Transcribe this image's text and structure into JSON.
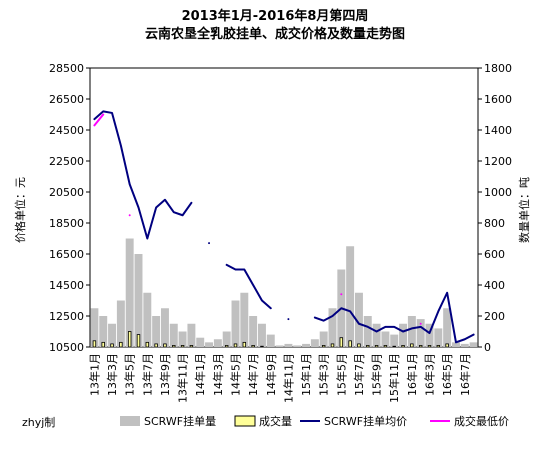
{
  "chart_data": {
    "type": "combo",
    "title": "2013年1月-2016年8月第四周",
    "subtitle": "云南农垦全乳胶挂单、成交价格及数量走势图",
    "y_label": "价格单位：元",
    "y2_label": "数量单位：吨",
    "note": "zhyj制",
    "categories": [
      "13年1月",
      null,
      "13年3月",
      null,
      "13年5月",
      null,
      "13年7月",
      null,
      "13年9月",
      null,
      "13年11月",
      null,
      "14年1月",
      null,
      "14年3月",
      null,
      "14年5月",
      null,
      "14年7月",
      null,
      "14年9月",
      null,
      "14年11月",
      null,
      "15年1月",
      null,
      "15年3月",
      null,
      "15年5月",
      null,
      "15年7月",
      null,
      "15年9月",
      null,
      "15年11月",
      null,
      "16年1月",
      null,
      "16年3月",
      null,
      "16年5月",
      null,
      "16年7月",
      null
    ],
    "ylim": [
      10500,
      28500
    ],
    "yticks": [
      10500,
      12500,
      14500,
      16500,
      18500,
      20500,
      22500,
      24500,
      26500,
      28500
    ],
    "y2lim": [
      0,
      1800
    ],
    "y2ticks": [
      0,
      200,
      400,
      600,
      800,
      1000,
      1200,
      1400,
      1600,
      1800
    ],
    "series": [
      {
        "name": "SCRWF挂单量",
        "kind": "bar",
        "axis": "y2",
        "color": "#c0c0c0",
        "values": [
          250,
          200,
          150,
          300,
          700,
          600,
          350,
          200,
          250,
          150,
          100,
          150,
          60,
          30,
          50,
          100,
          300,
          350,
          200,
          150,
          80,
          10,
          20,
          10,
          20,
          50,
          100,
          250,
          500,
          650,
          350,
          200,
          150,
          100,
          80,
          150,
          200,
          180,
          150,
          120,
          250,
          30,
          20,
          30
        ]
      },
      {
        "name": "成交量",
        "kind": "bar",
        "axis": "y2",
        "color": "#ffff99",
        "values": [
          40,
          30,
          20,
          30,
          100,
          80,
          30,
          20,
          20,
          10,
          10,
          10,
          0,
          0,
          0,
          10,
          20,
          30,
          10,
          5,
          0,
          0,
          0,
          0,
          0,
          0,
          10,
          20,
          60,
          40,
          20,
          10,
          10,
          10,
          5,
          10,
          20,
          10,
          10,
          10,
          20,
          0,
          0,
          0
        ]
      },
      {
        "name": "SCRWF挂单均价",
        "kind": "line",
        "color": "#000080",
        "values": [
          25200,
          25700,
          25600,
          23500,
          21000,
          19500,
          17500,
          19500,
          20000,
          19200,
          19000,
          19800,
          null,
          17200,
          null,
          15800,
          15500,
          15500,
          14500,
          13500,
          13000,
          null,
          12300,
          null,
          null,
          12400,
          12200,
          12500,
          13000,
          12800,
          12000,
          11800,
          11500,
          11800,
          11800,
          11500,
          11700,
          11800,
          11400,
          12800,
          14000,
          10800,
          11000,
          11300
        ]
      },
      {
        "name": "成交最低价",
        "kind": "line",
        "color": "#ff00ff",
        "values": [
          24800,
          25500,
          null,
          null,
          19000,
          null,
          null,
          null,
          null,
          null,
          null,
          null,
          null,
          null,
          null,
          null,
          null,
          null,
          null,
          null,
          null,
          null,
          null,
          null,
          null,
          null,
          null,
          null,
          13900,
          null,
          null,
          null,
          null,
          null,
          null,
          null,
          null,
          12000,
          null,
          null,
          null,
          null,
          null,
          null
        ]
      }
    ]
  }
}
